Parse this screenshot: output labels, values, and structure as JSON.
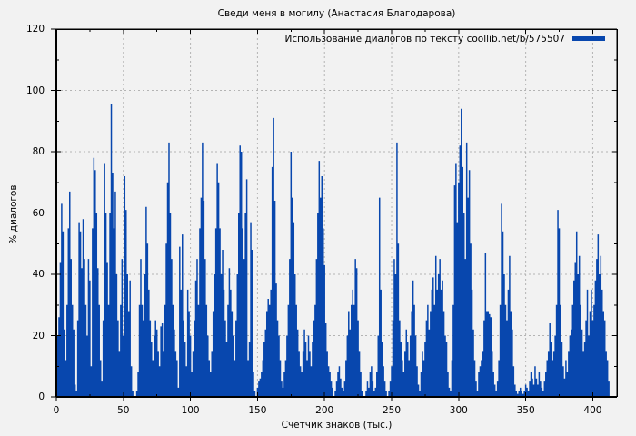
{
  "page_background": "#f2f2f2",
  "chart_data": {
    "type": "bar",
    "style": "impulses",
    "title": "Сведи меня в могилу (Анастасия Благодарова)",
    "xlabel": "Счетчик знаков (тыс.)",
    "ylabel": "% диалогов",
    "legend": {
      "label": "Использование диалогов по тексту coollib.net/b/575507",
      "position": "top-right-inside"
    },
    "xlim": [
      0,
      418
    ],
    "ylim": [
      0,
      120
    ],
    "x_ticks": [
      0,
      50,
      100,
      150,
      200,
      250,
      300,
      350,
      400
    ],
    "y_ticks": [
      0,
      20,
      40,
      60,
      80,
      100,
      120
    ],
    "x_minor_step": 25,
    "y_minor_step": 10,
    "grid": true,
    "bar_color": "#0847ae",
    "grid_color": "#b4b4b4",
    "frame_color": "#000000",
    "x_unit_note": "x = character counter in thousands, one value per 1k characters",
    "values": [
      5,
      20,
      26,
      44,
      63,
      54,
      22,
      12,
      30,
      55,
      67,
      45,
      30,
      22,
      4,
      2,
      25,
      57,
      54,
      42,
      58,
      45,
      30,
      20,
      45,
      38,
      10,
      55,
      78,
      74,
      60,
      42,
      30,
      12,
      5,
      25,
      76,
      60,
      44,
      30,
      60,
      95.5,
      73,
      55,
      67,
      40,
      25,
      15,
      30,
      45,
      20,
      72,
      61,
      40,
      28,
      38,
      10,
      2,
      0,
      0,
      2,
      8,
      30,
      45,
      30,
      25,
      40,
      62,
      50,
      35,
      25,
      18,
      12,
      20,
      25,
      22,
      15,
      10,
      23,
      24,
      15,
      30,
      50,
      70,
      83,
      60,
      45,
      30,
      22,
      15,
      12,
      3,
      49,
      35,
      53,
      25,
      18,
      10,
      35,
      28,
      20,
      8,
      15,
      25,
      38,
      45,
      30,
      55,
      65,
      83,
      64,
      45,
      30,
      20,
      12,
      8,
      15,
      28,
      40,
      55,
      76,
      70,
      55,
      40,
      48,
      35,
      25,
      18,
      30,
      42,
      35,
      28,
      20,
      12,
      25,
      40,
      60,
      82,
      80,
      55,
      45,
      60,
      71,
      12,
      18,
      57,
      48,
      8,
      2,
      0,
      3,
      5,
      6,
      8,
      12,
      18,
      22,
      28,
      32,
      30,
      35,
      75,
      91,
      64,
      37,
      25,
      20,
      12,
      5,
      3,
      8,
      12,
      20,
      30,
      45,
      80,
      65,
      57,
      40,
      30,
      22,
      15,
      10,
      8,
      15,
      22,
      18,
      12,
      20,
      15,
      10,
      18,
      25,
      30,
      45,
      60,
      77,
      65,
      72,
      55,
      43,
      24,
      15,
      10,
      8,
      5,
      3,
      0,
      2,
      5,
      8,
      10,
      6,
      3,
      2,
      5,
      12,
      20,
      28,
      22,
      30,
      35,
      30,
      45,
      42,
      25,
      15,
      8,
      2,
      0,
      0,
      2,
      5,
      3,
      8,
      10,
      5,
      2,
      3,
      8,
      20,
      65,
      35,
      18,
      10,
      5,
      2,
      0,
      2,
      5,
      10,
      25,
      45,
      40,
      83,
      50,
      25,
      18,
      12,
      8,
      15,
      22,
      18,
      12,
      20,
      28,
      38,
      30,
      20,
      10,
      4,
      2,
      8,
      15,
      12,
      18,
      25,
      30,
      22,
      28,
      35,
      39,
      30,
      46,
      35,
      40,
      45,
      35,
      38,
      28,
      20,
      18,
      8,
      3,
      2,
      12,
      30,
      69,
      76,
      57,
      70,
      82,
      94,
      75,
      60,
      45,
      83,
      65,
      74,
      50,
      35,
      22,
      12,
      5,
      2,
      8,
      10,
      12,
      15,
      25,
      47,
      28,
      28,
      27,
      26,
      15,
      8,
      4,
      2,
      5,
      12,
      30,
      63,
      54,
      40,
      30,
      25,
      35,
      46,
      28,
      22,
      10,
      4,
      2,
      1,
      2,
      3,
      2,
      1,
      2,
      4,
      3,
      2,
      5,
      8,
      6,
      4,
      10,
      6,
      4,
      8,
      5,
      3,
      2,
      5,
      8,
      12,
      15,
      24,
      18,
      12,
      15,
      20,
      30,
      61,
      55,
      30,
      18,
      10,
      6,
      12,
      8,
      15,
      20,
      22,
      30,
      38,
      44,
      54,
      40,
      46,
      30,
      22,
      15,
      18,
      25,
      35,
      20,
      28,
      35,
      25,
      30,
      38,
      45,
      53,
      40,
      46,
      35,
      28,
      25,
      15,
      12,
      5
    ]
  }
}
